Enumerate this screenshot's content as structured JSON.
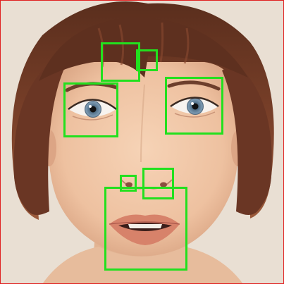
{
  "image": {
    "subject": "portrait-face",
    "colors": {
      "background": "#e9dfd3",
      "hair": "#6e3a26",
      "skin": "#f0c6a6",
      "iris": "#6f8fa8",
      "lips": "#d7826a",
      "annotation_box": "#22e01e",
      "image_border": "#e02020"
    }
  },
  "annotations": [
    {
      "label": "left-brow-region"
    },
    {
      "label": "glabella-small-region"
    },
    {
      "label": "right-eye-region"
    },
    {
      "label": "left-eye-region"
    },
    {
      "label": "left-nostril-region"
    },
    {
      "label": "nose-tip-region"
    },
    {
      "label": "mouth-region"
    }
  ]
}
